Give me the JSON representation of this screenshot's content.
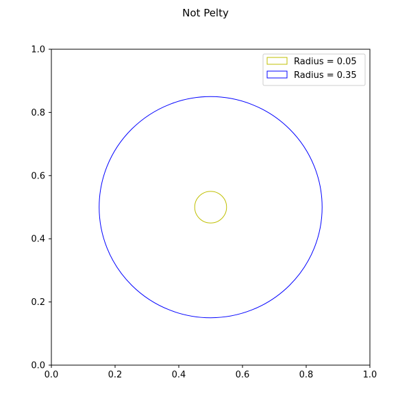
{
  "chart_data": {
    "type": "scatter",
    "title": "Not Pelty",
    "xlabel": "",
    "ylabel": "",
    "xlim": [
      0.0,
      1.0
    ],
    "ylim": [
      0.0,
      1.0
    ],
    "grid": false,
    "legend_position": "top-right",
    "x_ticks": [
      "0.0",
      "0.2",
      "0.4",
      "0.6",
      "0.8",
      "1.0"
    ],
    "y_ticks": [
      "0.0",
      "0.2",
      "0.4",
      "0.6",
      "0.8",
      "1.0"
    ],
    "x_tick_values": [
      0.0,
      0.2,
      0.4,
      0.6,
      0.8,
      1.0
    ],
    "y_tick_values": [
      0.0,
      0.2,
      0.4,
      0.6,
      0.8,
      1.0
    ],
    "series": [
      {
        "name": "Radius = 0.05",
        "shape": "circle",
        "center": [
          0.5,
          0.5
        ],
        "radius": 0.05,
        "color": "#bfbf00"
      },
      {
        "name": "Radius = 0.35",
        "shape": "circle",
        "center": [
          0.5,
          0.5
        ],
        "radius": 0.35,
        "color": "#0000ff"
      }
    ]
  }
}
